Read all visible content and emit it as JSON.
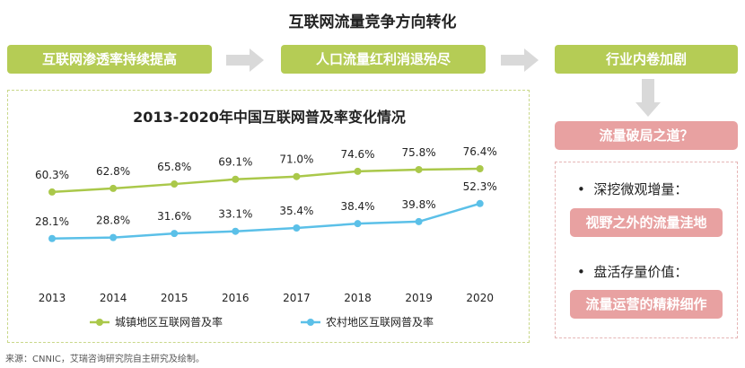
{
  "title": "互联网流量竞争方向转化",
  "steps": [
    "互联网渗透率持续提高",
    "人口流量红利消退殆尽",
    "行业内卷加剧"
  ],
  "question": "流量破局之道？",
  "solutions": [
    {
      "bullet": "深挖微观增量：",
      "box": "视野之外的流量洼地"
    },
    {
      "bullet": "盘活存量价值：",
      "box": "流量运营的精耕细作"
    }
  ],
  "source": "来源：CNNIC，艾瑞咨询研究院自主研究及绘制。",
  "colors": {
    "green": "#b5cc55",
    "pink": "#e8a1a1",
    "urban": "#aac84a",
    "rural": "#5bc0e8",
    "arrow": "#d9d9d9"
  },
  "chart_data": {
    "type": "line",
    "title": "2013-2020年中国互联网普及率变化情况",
    "categories": [
      "2013",
      "2014",
      "2015",
      "2016",
      "2017",
      "2018",
      "2019",
      "2020"
    ],
    "series": [
      {
        "name": "城镇地区互联网普及率",
        "values": [
          60.3,
          62.8,
          65.8,
          69.1,
          71.0,
          74.6,
          75.8,
          76.4
        ],
        "labels": [
          "60.3%",
          "62.8%",
          "65.8%",
          "69.1%",
          "71.0%",
          "74.6%",
          "75.8%",
          "76.4%"
        ]
      },
      {
        "name": "农村地区互联网普及率",
        "values": [
          28.1,
          28.8,
          31.6,
          33.1,
          35.4,
          38.4,
          39.8,
          52.3
        ],
        "labels": [
          "28.1%",
          "28.8%",
          "31.6%",
          "33.1%",
          "35.4%",
          "38.4%",
          "39.8%",
          "52.3%"
        ]
      }
    ],
    "legend": "bottom",
    "grid": false
  }
}
